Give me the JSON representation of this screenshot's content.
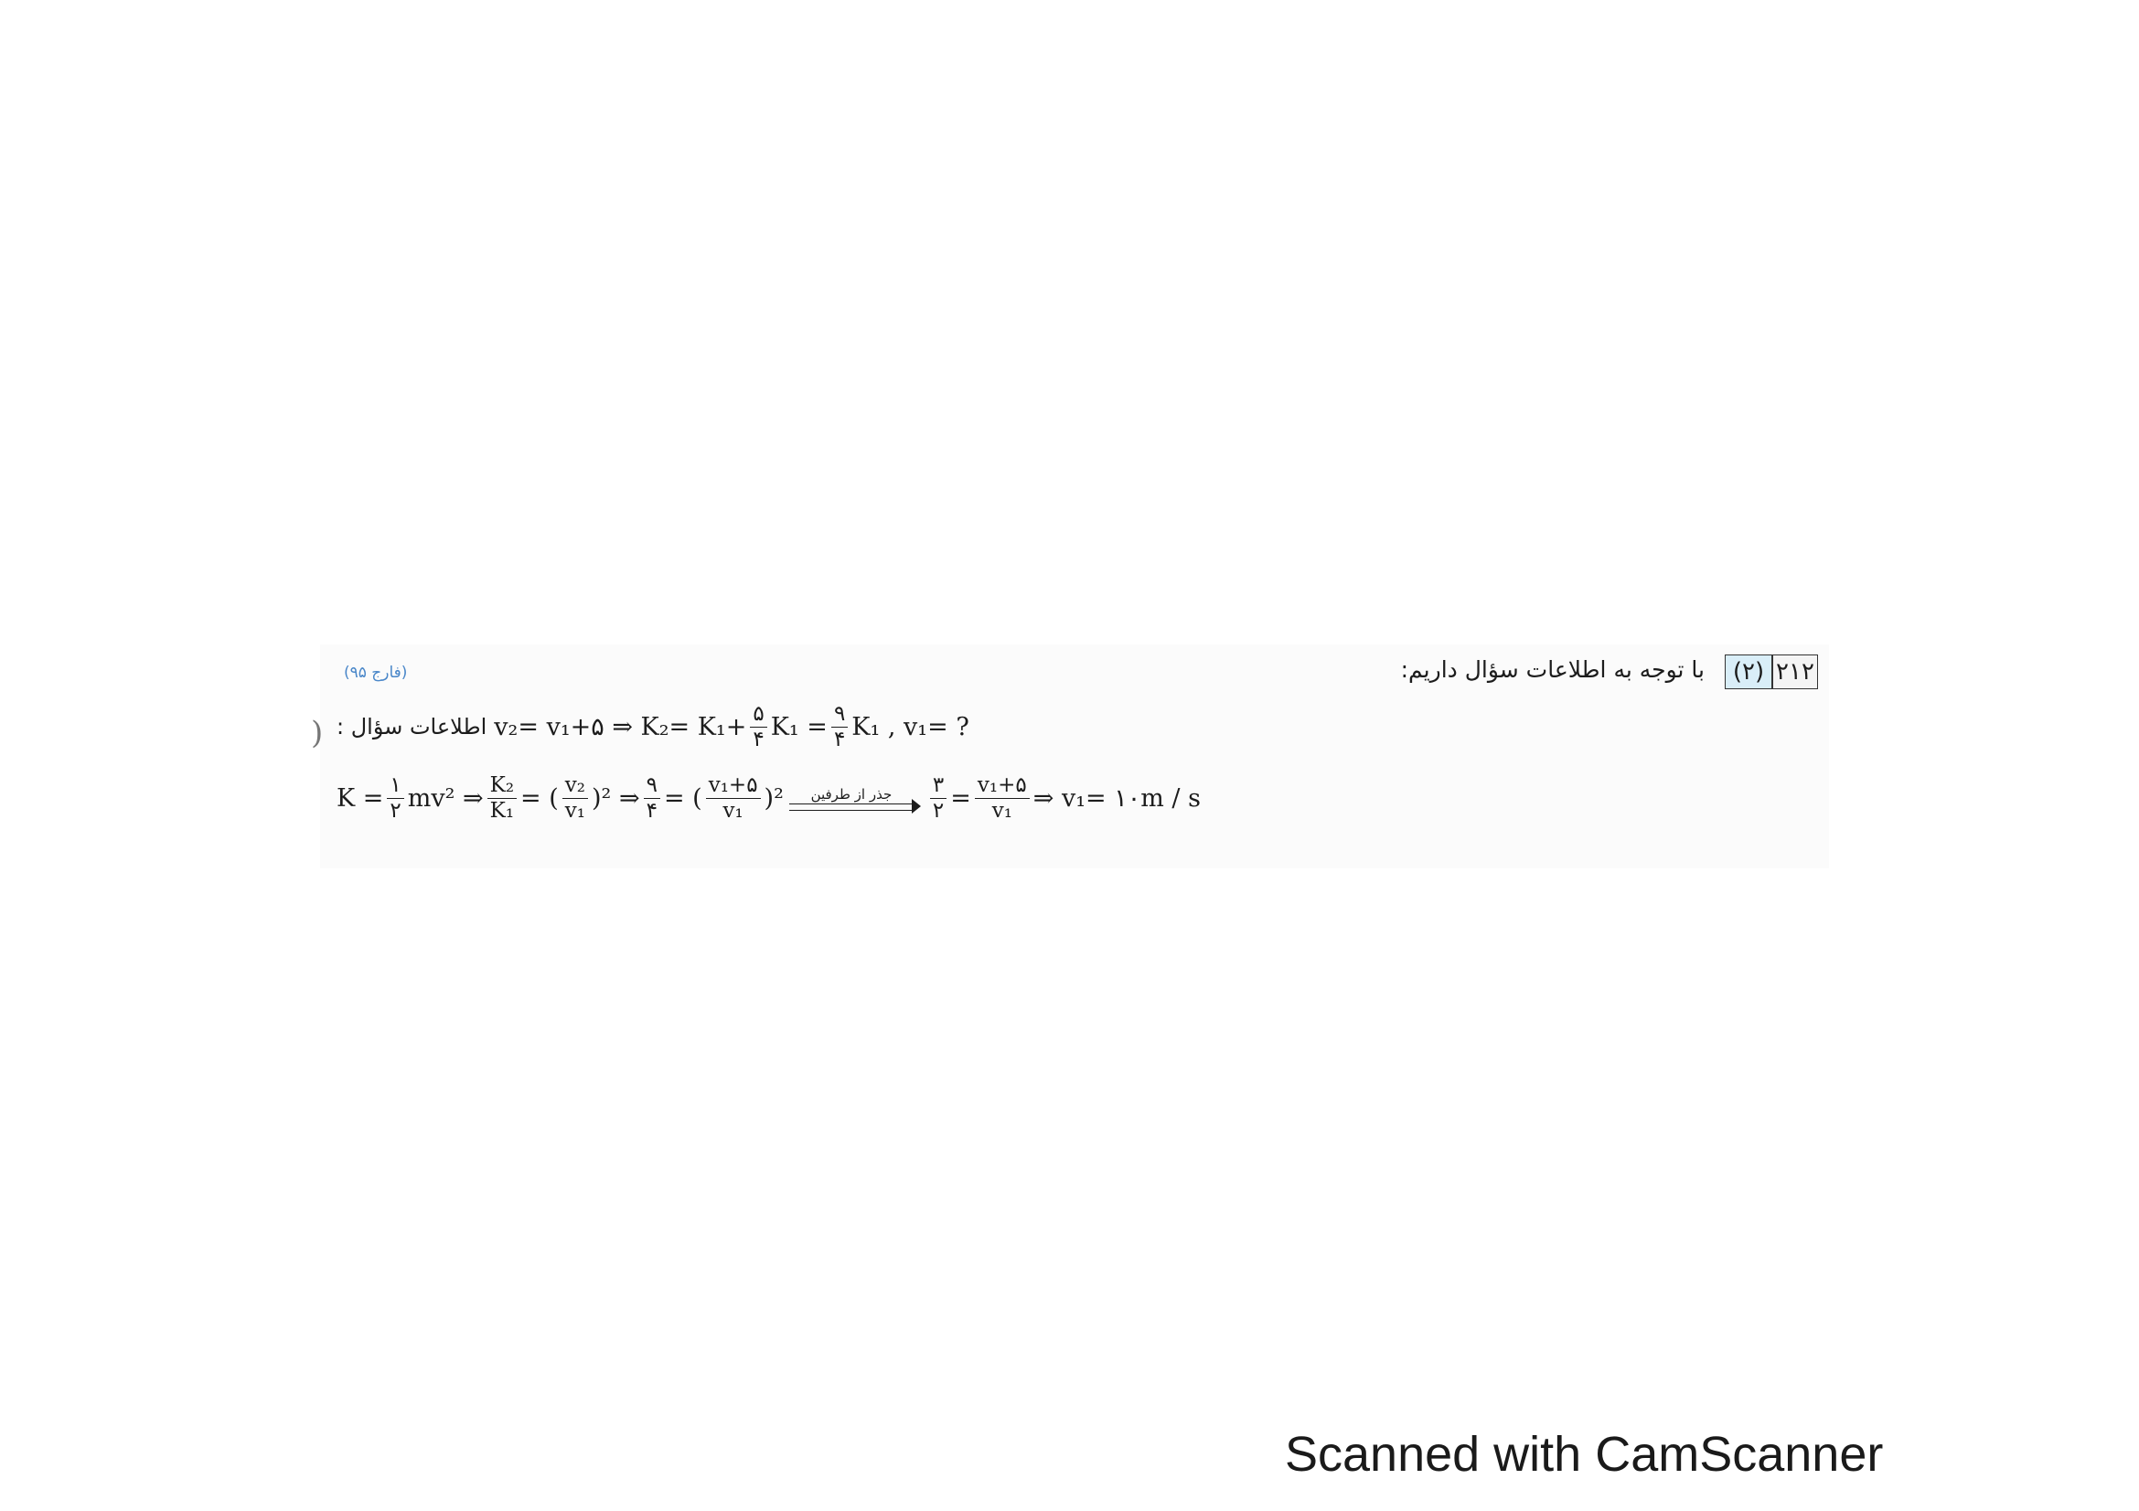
{
  "question": {
    "number": "۲۱۲",
    "answer": "(۲)",
    "intro_text": "با توجه به اطلاعات سؤال داریم:",
    "source_tag": "(فارج ۹۵)"
  },
  "equation_line_1": {
    "label": "اطلاعات سؤال :",
    "part_a": "v₂= v₁+۵ ⇒ K₂= K₁+",
    "frac1_num": "۵",
    "frac1_den": "۴",
    "part_b": "K₁ =",
    "frac2_num": "۹",
    "frac2_den": "۴",
    "part_c": "K₁ ,  v₁= ?"
  },
  "equation_line_2": {
    "part_a": "K =",
    "frac1_num": "۱",
    "frac1_den": "۲",
    "part_b": "mv² ⇒",
    "frac2_num": "K₂",
    "frac2_den": "K₁",
    "part_c": "= (",
    "frac3_num": "v₂",
    "frac3_den": "v₁",
    "part_d": ")² ⇒",
    "frac4_num": "۹",
    "frac4_den": "۴",
    "part_e": "= (",
    "frac5_num": "v₁+۵",
    "frac5_den": "v₁",
    "part_f": ")²",
    "arrow_label": "جذر از طرفین",
    "frac6_num": "۳",
    "frac6_den": "۲",
    "part_g": "=",
    "frac7_num": "v₁+۵",
    "frac7_den": "v₁",
    "part_h": "⇒ v₁= ۱۰m / s"
  },
  "footer": {
    "watermark": "Scanned with CamScanner"
  }
}
